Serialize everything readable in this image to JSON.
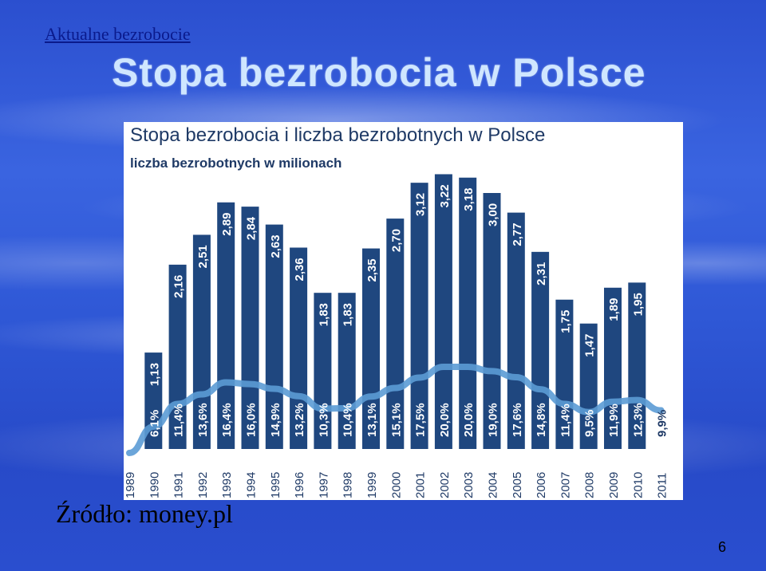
{
  "slide": {
    "breadcrumb": "Aktualne bezrobocie",
    "title": "Stopa bezrobocia w Polsce",
    "source": "Źródło: money.pl",
    "page_number": "6"
  },
  "chart_data": {
    "type": "bar",
    "title": "Stopa bezrobocia i liczba bezrobotnych w Polsce",
    "subtitle": "liczba bezrobotnych w milionach",
    "categories": [
      "1989",
      "1990",
      "1991",
      "1992",
      "1993",
      "1994",
      "1995",
      "1996",
      "1997",
      "1998",
      "1999",
      "2000",
      "2001",
      "2002",
      "2003",
      "2004",
      "2005",
      "2006",
      "2007",
      "2008",
      "2009",
      "2010",
      "2011"
    ],
    "series": [
      {
        "type": "bar",
        "values": [
          null,
          1.13,
          2.16,
          2.51,
          2.89,
          2.84,
          2.63,
          2.36,
          1.83,
          1.83,
          2.35,
          2.7,
          3.12,
          3.22,
          3.18,
          3.0,
          2.77,
          2.31,
          1.75,
          1.47,
          1.89,
          1.95,
          null
        ],
        "labels": [
          "",
          "1,13",
          "2,16",
          "2,51",
          "2,89",
          "2,84",
          "2,63",
          "2,36",
          "1,83",
          "1,83",
          "2,35",
          "2,70",
          "3,12",
          "3,22",
          "3,18",
          "3,00",
          "2,77",
          "2,31",
          "1,75",
          "1,47",
          "1,89",
          "1,95",
          ""
        ]
      },
      {
        "type": "line",
        "values": [
          0.0,
          6.1,
          11.4,
          13.6,
          16.4,
          16.0,
          14.9,
          13.2,
          10.3,
          10.4,
          13.1,
          15.1,
          17.5,
          20.0,
          20.0,
          19.0,
          17.6,
          14.8,
          11.4,
          9.5,
          11.9,
          12.3,
          9.9
        ],
        "labels": [
          "",
          "6,1%",
          "11,4%",
          "13,6%",
          "16,4%",
          "16,0%",
          "14,9%",
          "13,2%",
          "10,3%",
          "10,4%",
          "13,1%",
          "15,1%",
          "17,5%",
          "20,0%",
          "20,0%",
          "19,0%",
          "17,6%",
          "14,8%",
          "11,4%",
          "9,5%",
          "11,9%",
          "12,3%",
          "9,9%"
        ]
      }
    ],
    "colors": {
      "bar": "#1f477f",
      "line": "#5b9bd5",
      "title": "#1f3a66",
      "axis_text": "#1f3a66"
    }
  }
}
